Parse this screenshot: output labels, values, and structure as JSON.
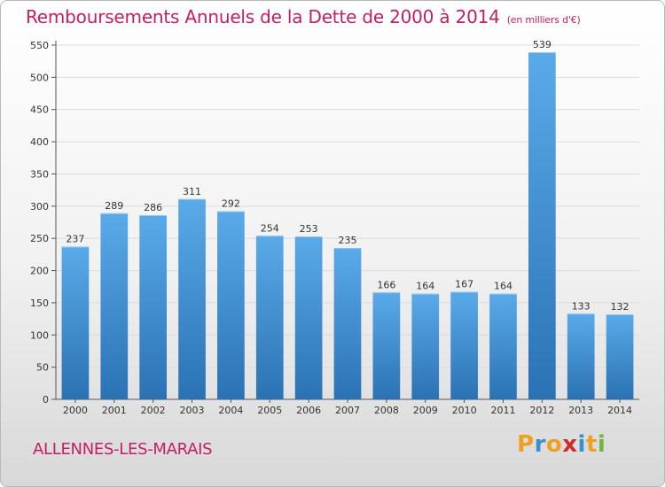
{
  "title": "Remboursements Annuels de la Dette de 2000 à 2014",
  "subtitle": "(en milliers d'€)",
  "town": "ALLENNES-LES-MARAIS",
  "logo": {
    "letters": [
      "P",
      "r",
      "o",
      "x",
      "i",
      "t",
      "i"
    ],
    "colors": [
      "#f0a020",
      "#3a8fd0",
      "#f0a020",
      "#d02a2a",
      "#3a8fd0",
      "#f0a020",
      "#6bb83a"
    ]
  },
  "colors": {
    "bar_light": "#5aaaea",
    "bar_dark": "#2a72b4",
    "accent": "#c41e66",
    "grid": "#dcdcdc"
  },
  "chart_data": {
    "type": "bar",
    "title": "Remboursements Annuels de la Dette de 2000 à 2014",
    "categories": [
      "2000",
      "2001",
      "2002",
      "2003",
      "2004",
      "2005",
      "2006",
      "2007",
      "2008",
      "2009",
      "2010",
      "2011",
      "2012",
      "2013",
      "2014"
    ],
    "values": [
      237,
      289,
      286,
      311,
      292,
      254,
      253,
      235,
      166,
      164,
      167,
      164,
      539,
      133,
      132
    ],
    "ylim": [
      0,
      550
    ],
    "yticks": [
      0,
      50,
      100,
      150,
      200,
      250,
      300,
      350,
      400,
      450,
      500,
      550
    ],
    "grid": true,
    "xlabel": "",
    "ylabel": ""
  }
}
